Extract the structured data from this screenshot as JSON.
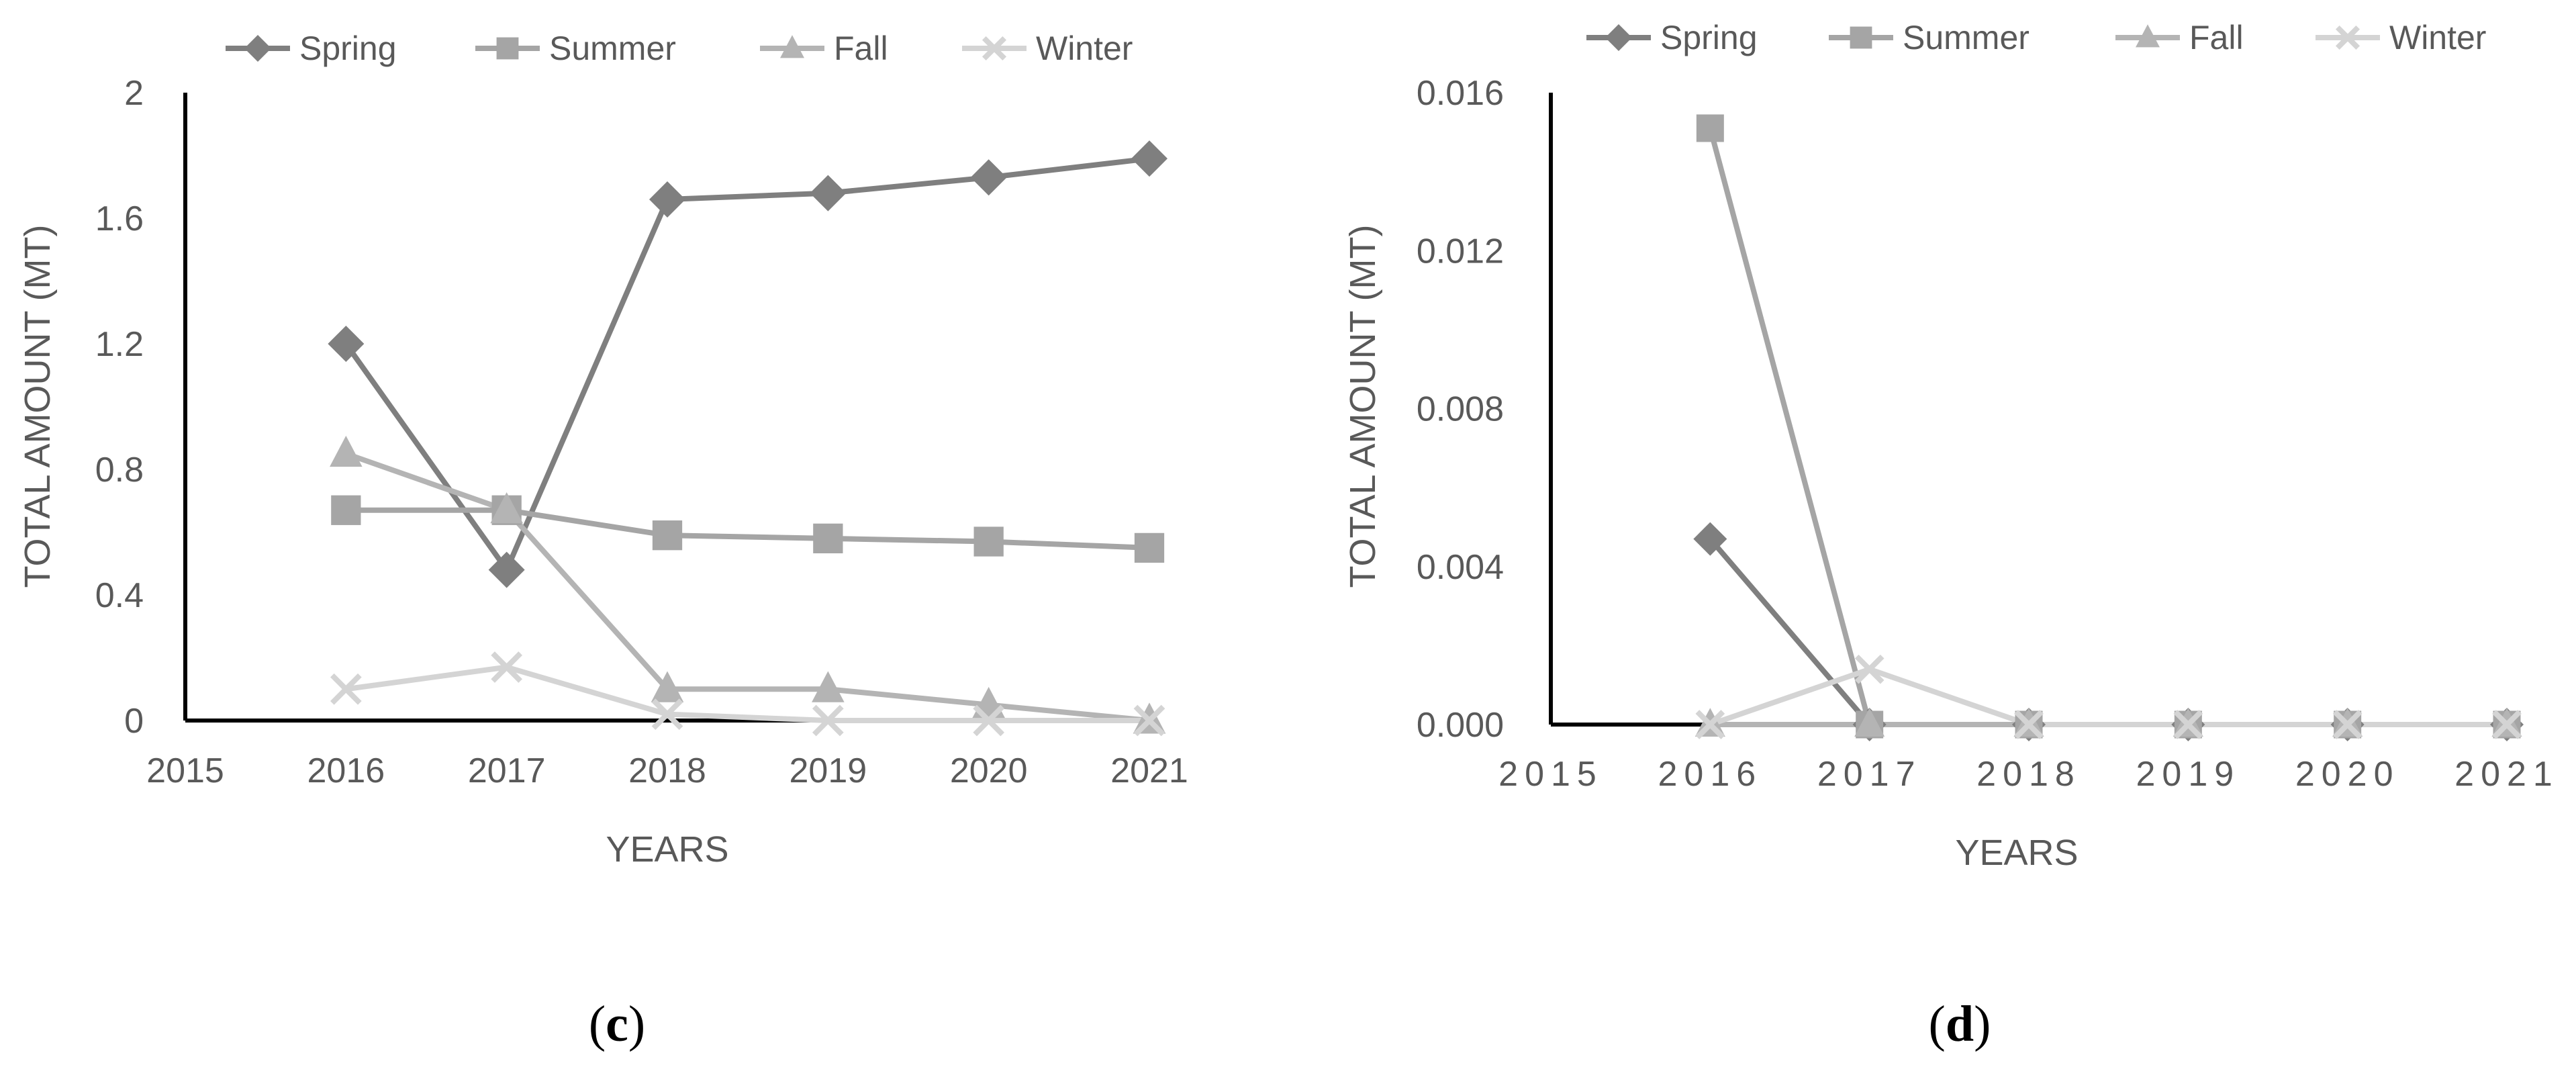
{
  "chart_data": [
    {
      "type": "line",
      "panel": "c",
      "caption_open": "(",
      "caption_letter": "c",
      "caption_close": ")",
      "xlabel": "YEARS",
      "ylabel": "TOTAL AMOUNT (MT)",
      "x_ticks": [
        "2015",
        "2016",
        "2017",
        "2018",
        "2019",
        "2020",
        "2021"
      ],
      "xlim": [
        2015,
        2021
      ],
      "y_ticks": [
        "0",
        "0.4",
        "0.8",
        "1.2",
        "1.6",
        "2"
      ],
      "ylim": [
        0,
        2
      ],
      "legend_position": "top",
      "grid": false,
      "x": [
        2016,
        2017,
        2018,
        2019,
        2020,
        2021
      ],
      "series": [
        {
          "name": "Spring",
          "marker": "diamond",
          "color": "#7f7f7f",
          "values": [
            1.2,
            0.48,
            1.66,
            1.68,
            1.73,
            1.79
          ]
        },
        {
          "name": "Summer",
          "marker": "square",
          "color": "#a5a5a5",
          "values": [
            0.67,
            0.67,
            0.59,
            0.58,
            0.57,
            0.55
          ]
        },
        {
          "name": "Fall",
          "marker": "triangle",
          "color": "#b4b4b4",
          "values": [
            0.85,
            0.67,
            0.1,
            0.1,
            0.05,
            0.0
          ]
        },
        {
          "name": "Winter",
          "marker": "x",
          "color": "#d4d4d4",
          "values": [
            0.1,
            0.17,
            0.02,
            0.0,
            0.0,
            0.0
          ]
        }
      ]
    },
    {
      "type": "line",
      "panel": "d",
      "caption_open": "(",
      "caption_letter": "d",
      "caption_close": ")",
      "xlabel": "YEARS",
      "ylabel": "TOTAL AMOUNT (MT)",
      "x_ticks": [
        "2015",
        "2016",
        "2017",
        "2018",
        "2019",
        "2020",
        "2021"
      ],
      "xlim": [
        2015,
        2021
      ],
      "y_ticks": [
        "0.000",
        "0.004",
        "0.008",
        "0.012",
        "0.016"
      ],
      "ylim": [
        0,
        0.016
      ],
      "legend_position": "top",
      "grid": false,
      "x": [
        2016,
        2017,
        2018,
        2019,
        2020,
        2021
      ],
      "series": [
        {
          "name": "Spring",
          "marker": "diamond",
          "color": "#7f7f7f",
          "values": [
            0.0047,
            0.0,
            0.0,
            0.0,
            0.0,
            0.0
          ]
        },
        {
          "name": "Summer",
          "marker": "square",
          "color": "#a5a5a5",
          "values": [
            0.0151,
            0.0,
            0.0,
            0.0,
            0.0,
            0.0
          ]
        },
        {
          "name": "Fall",
          "marker": "triangle",
          "color": "#b4b4b4",
          "values": [
            0.0,
            0.0,
            0.0,
            0.0,
            0.0,
            0.0
          ]
        },
        {
          "name": "Winter",
          "marker": "x",
          "color": "#d4d4d4",
          "values": [
            0.0,
            0.0014,
            0.0,
            0.0,
            0.0,
            0.0
          ]
        }
      ]
    }
  ]
}
